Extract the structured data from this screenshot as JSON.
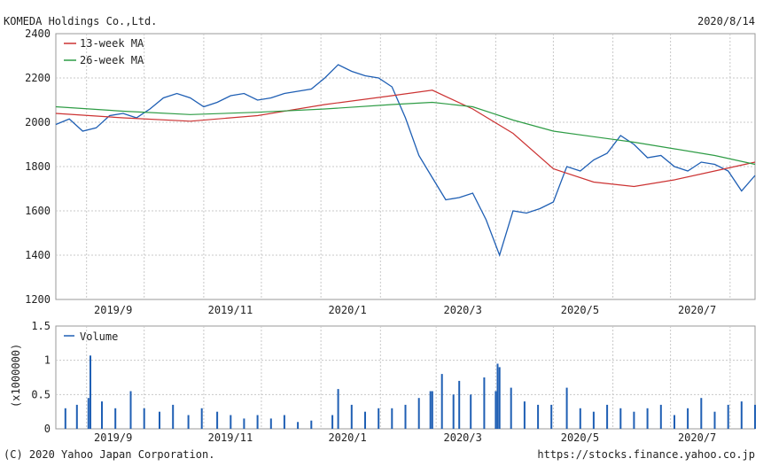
{
  "header": {
    "company": "KOMEDA Holdings Co.,Ltd.",
    "date": "2020/8/14"
  },
  "footer": {
    "copyright": "(C) 2020 Yahoo Japan Corporation.",
    "url": "https://stocks.finance.yahoo.co.jp"
  },
  "colors": {
    "price": "#1f5fb4",
    "ma13": "#cc3333",
    "ma26": "#2e9c45",
    "volume": "#1f5fb4"
  },
  "chart_data": [
    {
      "type": "line",
      "title": "KOMEDA Holdings Co.,Ltd.",
      "x_tick_labels": [
        "2019/9",
        "2019/11",
        "2020/1",
        "2020/3",
        "2020/5",
        "2020/7"
      ],
      "ylim": [
        1200,
        2400
      ],
      "yticks": [
        1200,
        1400,
        1600,
        1800,
        2000,
        2200,
        2400
      ],
      "grid": true,
      "legend_placement": "top-left",
      "x_range": [
        "2019-08-16",
        "2020-08-14"
      ],
      "series": [
        {
          "name": "Price",
          "x": [
            "2019-08-16",
            "2019-08-23",
            "2019-08-30",
            "2019-09-06",
            "2019-09-13",
            "2019-09-20",
            "2019-09-27",
            "2019-10-04",
            "2019-10-11",
            "2019-10-18",
            "2019-10-25",
            "2019-11-01",
            "2019-11-08",
            "2019-11-15",
            "2019-11-22",
            "2019-11-29",
            "2019-12-06",
            "2019-12-13",
            "2019-12-20",
            "2019-12-27",
            "2020-01-03",
            "2020-01-10",
            "2020-01-17",
            "2020-01-24",
            "2020-01-31",
            "2020-02-07",
            "2020-02-14",
            "2020-02-21",
            "2020-02-28",
            "2020-03-06",
            "2020-03-13",
            "2020-03-20",
            "2020-03-27",
            "2020-04-03",
            "2020-04-10",
            "2020-04-17",
            "2020-04-24",
            "2020-05-01",
            "2020-05-08",
            "2020-05-15",
            "2020-05-22",
            "2020-05-29",
            "2020-06-05",
            "2020-06-12",
            "2020-06-19",
            "2020-06-26",
            "2020-07-03",
            "2020-07-10",
            "2020-07-17",
            "2020-07-24",
            "2020-07-31",
            "2020-08-07",
            "2020-08-14"
          ],
          "y": [
            1990,
            2015,
            1960,
            1975,
            2030,
            2040,
            2020,
            2060,
            2110,
            2130,
            2110,
            2070,
            2090,
            2120,
            2130,
            2100,
            2110,
            2130,
            2140,
            2150,
            2200,
            2260,
            2230,
            2210,
            2200,
            2160,
            2020,
            1850,
            1750,
            1650,
            1660,
            1680,
            1560,
            1400,
            1600,
            1590,
            1610,
            1640,
            1800,
            1780,
            1830,
            1860,
            1940,
            1900,
            1840,
            1850,
            1800,
            1780,
            1820,
            1810,
            1780,
            1690,
            1760
          ]
        },
        {
          "name": "13-week MA",
          "x": [
            "2019-08-16",
            "2019-09-20",
            "2019-10-25",
            "2019-11-29",
            "2020-01-03",
            "2020-02-07",
            "2020-02-28",
            "2020-03-20",
            "2020-04-10",
            "2020-05-01",
            "2020-05-22",
            "2020-06-12",
            "2020-07-03",
            "2020-07-24",
            "2020-08-14"
          ],
          "y": [
            2040,
            2020,
            2005,
            2030,
            2080,
            2120,
            2145,
            2060,
            1950,
            1790,
            1730,
            1710,
            1740,
            1780,
            1820
          ]
        },
        {
          "name": "26-week MA",
          "x": [
            "2019-08-16",
            "2019-09-20",
            "2019-10-25",
            "2019-11-29",
            "2020-01-03",
            "2020-02-07",
            "2020-02-28",
            "2020-03-20",
            "2020-04-10",
            "2020-05-01",
            "2020-05-22",
            "2020-06-12",
            "2020-07-03",
            "2020-07-24",
            "2020-08-14"
          ],
          "y": [
            2070,
            2050,
            2035,
            2045,
            2060,
            2080,
            2090,
            2070,
            2010,
            1960,
            1935,
            1910,
            1880,
            1850,
            1810
          ]
        }
      ]
    },
    {
      "type": "bar",
      "ylabel": "(x1000000)",
      "x_tick_labels": [
        "2019/9",
        "2019/11",
        "2020/1",
        "2020/3",
        "2020/5",
        "2020/7"
      ],
      "ylim": [
        0,
        1.5
      ],
      "yticks": [
        "0",
        "0.5",
        "1",
        "1.5"
      ],
      "grid": true,
      "legend_placement": "top-left",
      "x_range": [
        "2019-08-16",
        "2020-08-14"
      ],
      "series": [
        {
          "name": "Volume",
          "x": [
            "2019-08-21",
            "2019-08-27",
            "2019-09-02",
            "2019-09-03",
            "2019-09-09",
            "2019-09-16",
            "2019-09-24",
            "2019-10-01",
            "2019-10-09",
            "2019-10-16",
            "2019-10-24",
            "2019-10-31",
            "2019-11-08",
            "2019-11-15",
            "2019-11-22",
            "2019-11-29",
            "2019-12-06",
            "2019-12-13",
            "2019-12-20",
            "2019-12-27",
            "2020-01-07",
            "2020-01-10",
            "2020-01-17",
            "2020-01-24",
            "2020-01-31",
            "2020-02-07",
            "2020-02-14",
            "2020-02-21",
            "2020-02-27",
            "2020-02-28",
            "2020-03-04",
            "2020-03-10",
            "2020-03-13",
            "2020-03-19",
            "2020-03-26",
            "2020-04-01",
            "2020-04-02",
            "2020-04-03",
            "2020-04-09",
            "2020-04-16",
            "2020-04-23",
            "2020-04-30",
            "2020-05-08",
            "2020-05-15",
            "2020-05-22",
            "2020-05-29",
            "2020-06-05",
            "2020-06-12",
            "2020-06-19",
            "2020-06-26",
            "2020-07-03",
            "2020-07-10",
            "2020-07-17",
            "2020-07-24",
            "2020-07-31",
            "2020-08-07",
            "2020-08-14"
          ],
          "values": [
            0.3,
            0.35,
            0.45,
            1.07,
            0.4,
            0.3,
            0.55,
            0.3,
            0.25,
            0.35,
            0.2,
            0.3,
            0.25,
            0.2,
            0.15,
            0.2,
            0.15,
            0.2,
            0.1,
            0.12,
            0.2,
            0.58,
            0.35,
            0.25,
            0.3,
            0.3,
            0.35,
            0.45,
            0.55,
            0.55,
            0.8,
            0.5,
            0.7,
            0.5,
            0.75,
            0.55,
            0.95,
            0.9,
            0.6,
            0.4,
            0.35,
            0.35,
            0.6,
            0.3,
            0.25,
            0.35,
            0.3,
            0.25,
            0.3,
            0.35,
            0.2,
            0.3,
            0.45,
            0.25,
            0.35,
            0.4,
            0.35
          ]
        }
      ]
    }
  ]
}
